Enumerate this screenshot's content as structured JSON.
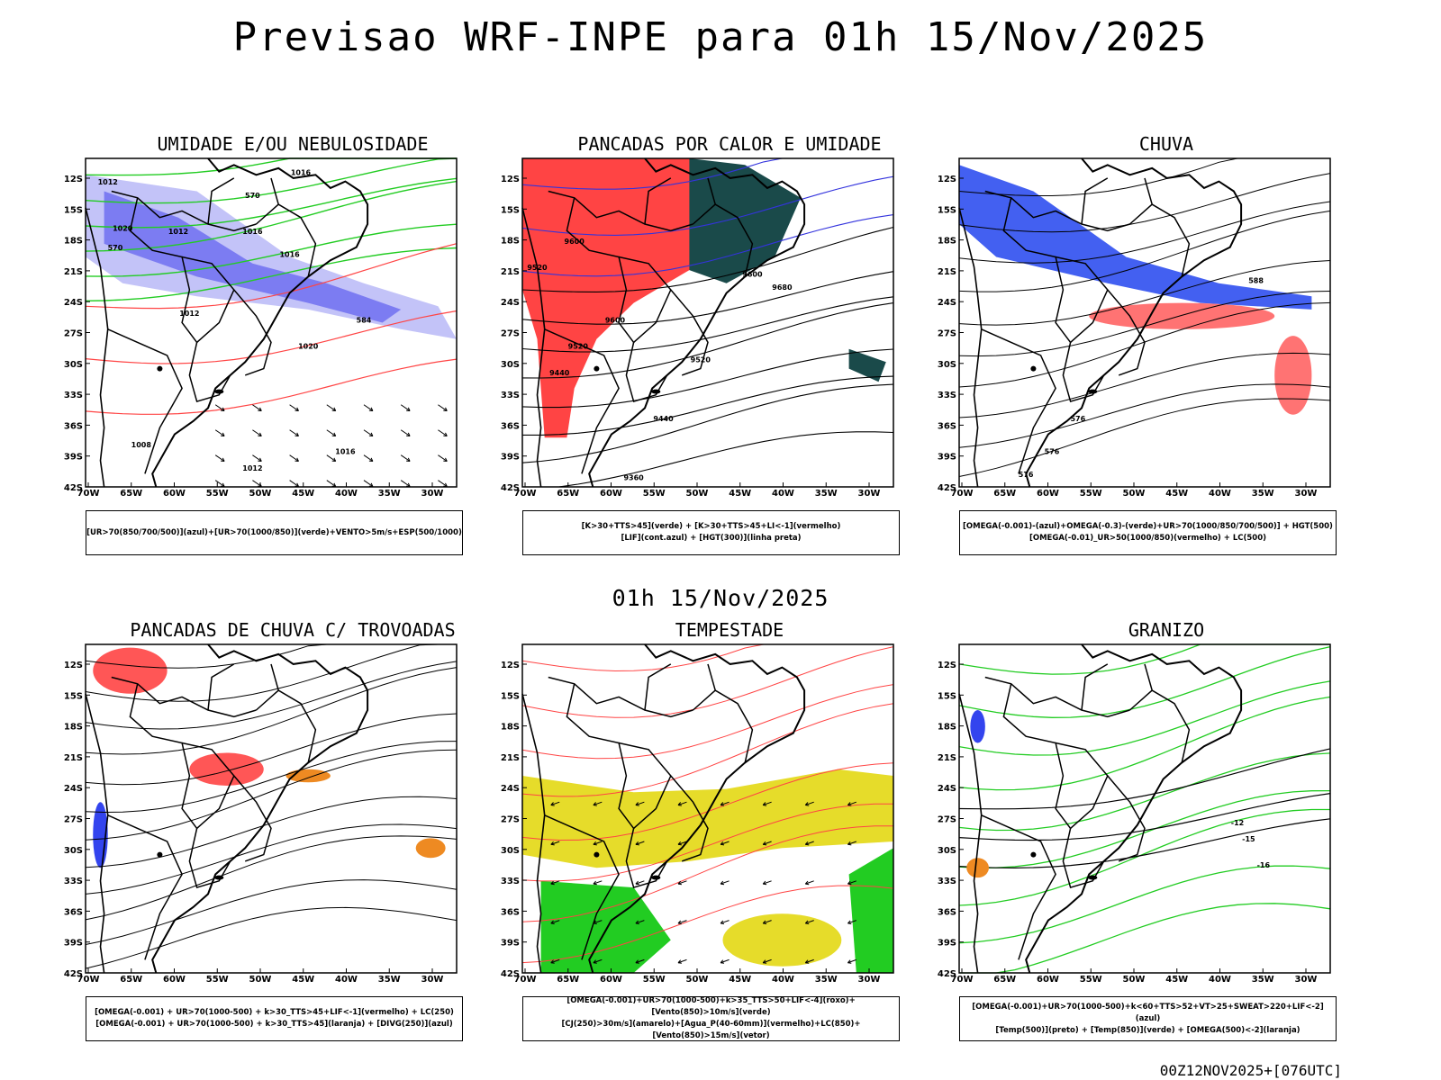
{
  "title": "Previsao WRF-INPE  para 01h 15/Nov/2025",
  "mid_date": "01h 15/Nov/2025",
  "footer": "00Z12NOV2025+[076UTC]",
  "lat_ticks": [
    "12S",
    "15S",
    "18S",
    "21S",
    "24S",
    "27S",
    "30S",
    "33S",
    "36S",
    "39S",
    "42S"
  ],
  "lon_ticks": [
    "70W",
    "65W",
    "60W",
    "55W",
    "50W",
    "45W",
    "40W",
    "35W",
    "30W"
  ],
  "colors": {
    "blue": "#6a6af0",
    "lightblue": "#aaaaf5",
    "green": "#22cc22",
    "red": "#ff4444",
    "darkgreen": "#1a4a4a",
    "yellow": "#e6dc2a",
    "orange": "#ee8a22"
  },
  "panels": [
    {
      "title": "UMIDADE E/OU NEBULOSIDADE",
      "legend": [
        "[UR>70(850/700/500)](azul)+[UR>70(1000/850)](verde)+VENTO>5m/s+ESP(500/1000)"
      ],
      "labels": [
        "1012",
        "1020",
        "1016",
        "1012",
        "1012",
        "1016",
        "1016",
        "1008",
        "1012",
        "1016",
        "570",
        "570",
        "584",
        "1020"
      ]
    },
    {
      "title": "PANCADAS POR CALOR E UMIDADE",
      "legend": [
        "[K>30+TTS>45](verde) + [K>30+TTS>45+LI<-1](vermelho)",
        "[LIF](cont.azul) + [HGT(300)](linha preta)"
      ],
      "labels": [
        "9600",
        "9520",
        "9600",
        "9600",
        "9520",
        "9440",
        "9520",
        "9440",
        "9360",
        "9680"
      ]
    },
    {
      "title": "CHUVA",
      "legend": [
        "[OMEGA(-0.001)-(azul)+OMEGA(-0.3)-(verde)+UR>70(1000/850/700/500)] + HGT(500)",
        "[OMEGA(-0.01)_UR>50(1000/850)(vermelho) + LC(500)"
      ],
      "labels": [
        "588",
        "576",
        "576",
        "576"
      ]
    },
    {
      "title": "PANCADAS DE CHUVA C/ TROVOADAS",
      "legend": [
        "[OMEGA(-0.001) + UR>70(1000-500) + k>30_TTS>45+LIF<-1](vermelho) + LC(250)",
        "[OMEGA(-0.001) + UR>70(1000-500) + k>30_TTS>45](laranja) + [DIVG(250)](azul)"
      ],
      "labels": []
    },
    {
      "title": "TEMPESTADE",
      "legend": [
        "[OMEGA(-0.001)+UR>70(1000-500)+k>35_TTS>50+LIF<-4](roxo)+[Vento(850)>10m/s](verde)",
        "[CJ(250)>30m/s](amarelo)+[Agua_P(40-60mm)](vermelho)+LC(850)+[Vento(850)>15m/s](vetor)"
      ],
      "labels": []
    },
    {
      "title": "GRANIZO",
      "legend": [
        "[OMEGA(-0.001)+UR>70(1000-500)+k<60+TTS>52+VT>25+SWEAT>220+LIF<-2](azul)",
        "[Temp(500)](preto) + [Temp(850)](verde) + [OMEGA(500)<-2](laranja)"
      ],
      "labels": [
        "-12",
        "-15",
        "-16"
      ]
    }
  ]
}
